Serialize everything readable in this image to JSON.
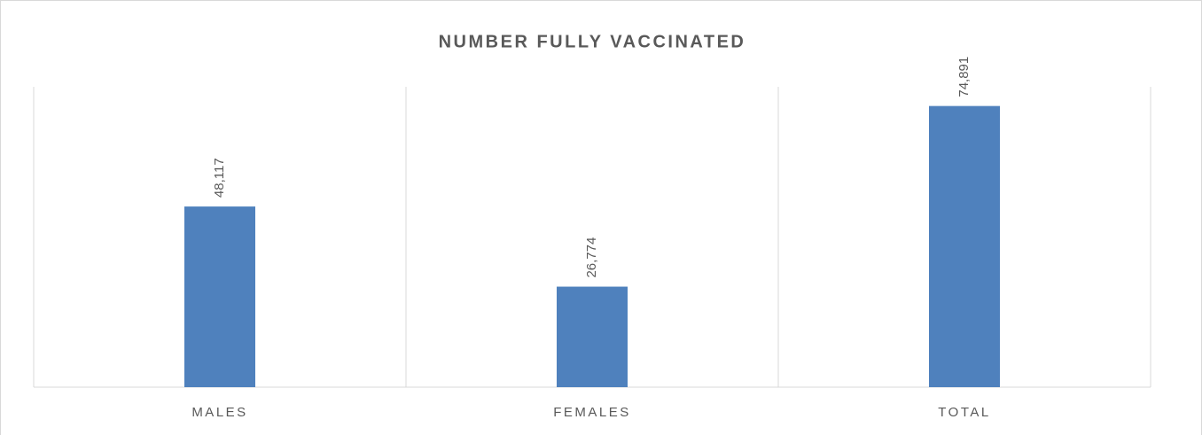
{
  "chart_data": {
    "type": "bar",
    "title": "NUMBER FULLY VACCINATED",
    "categories": [
      "MALES",
      "FEMALES",
      "TOTAL"
    ],
    "values": [
      48117,
      26774,
      74891
    ],
    "value_labels": [
      "48,117",
      "26,774",
      "74,891"
    ],
    "color": "#4f81bd",
    "ylim": [
      0,
      80000
    ]
  }
}
